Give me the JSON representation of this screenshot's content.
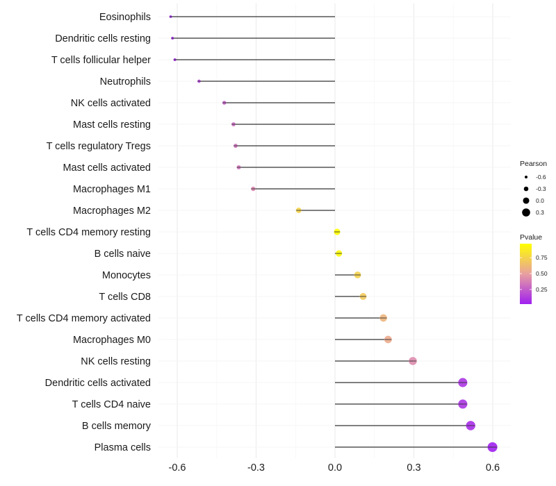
{
  "chart_data": {
    "type": "lollipop",
    "xlabel": "",
    "ylabel": "",
    "xlim": [
      -0.7,
      0.63
    ],
    "x_ticks": [
      "-0.6",
      "-0.3",
      "0.0",
      "0.3",
      "0.6"
    ],
    "x_tick_values": [
      -0.6,
      -0.3,
      0.0,
      0.3,
      0.6
    ],
    "baseline": 0,
    "categories": [
      "Eosinophils",
      "Dendritic cells resting",
      "T cells follicular helper",
      "Neutrophils",
      "NK cells activated",
      "Mast cells resting",
      "T cells regulatory  Tregs ",
      "Mast cells activated",
      "Macrophages M1",
      "Macrophages M2",
      "T cells CD4 memory resting",
      "B cells naive",
      "Monocytes",
      "T cells CD8",
      "T cells CD4 memory activated",
      "Macrophages M0",
      "NK cells resting",
      "Dendritic cells activated",
      "T cells CD4 naive",
      "B cells memory",
      "Plasma cells"
    ],
    "values": [
      -0.625,
      -0.618,
      -0.609,
      -0.517,
      -0.421,
      -0.386,
      -0.378,
      -0.366,
      -0.311,
      -0.138,
      0.008,
      0.015,
      0.086,
      0.107,
      0.184,
      0.202,
      0.296,
      0.486,
      0.486,
      0.516,
      0.599
    ],
    "pvalues": [
      0.02,
      0.03,
      0.04,
      0.15,
      0.25,
      0.3,
      0.32,
      0.33,
      0.4,
      0.75,
      0.97,
      0.95,
      0.74,
      0.7,
      0.6,
      0.55,
      0.42,
      0.1,
      0.1,
      0.07,
      0.02
    ],
    "size_legend": {
      "title": "Pearson",
      "values": [
        -0.6,
        -0.3,
        0.0,
        0.3
      ],
      "labels": [
        "-0.6",
        "-0.3",
        "0.0",
        "0.3"
      ]
    },
    "color_legend": {
      "title": "Pvalue",
      "ticks": [
        0.75,
        0.5,
        0.25
      ],
      "labels": [
        "0.75",
        "0.50",
        "0.25"
      ],
      "range": [
        0.02,
        0.97
      ],
      "low_color": "#a020f0",
      "high_color": "#ffff00"
    }
  }
}
